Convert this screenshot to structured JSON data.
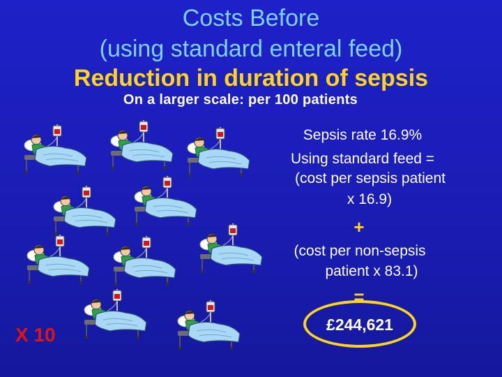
{
  "title": {
    "line1": "Costs Before",
    "line2": "(using standard enteral feed)",
    "line3": "Reduction in duration of sepsis"
  },
  "subtitle": "On a larger scale: per 100 patients",
  "calc": {
    "line1": "Sepsis rate 16.9%",
    "line2": "Using standard feed =",
    "line3": "(cost per sepsis patient",
    "line4": "x 16.9)",
    "plus": "+",
    "line5": "(cost per non-sepsis",
    "line6": "patient x 83.1)",
    "equals": "=",
    "result": "£244,621"
  },
  "multiplier": "X 10",
  "illustration": {
    "icon": "patient-in-bed-icon",
    "count": 10
  },
  "colors": {
    "background": "#1e21c8",
    "title_blue": "#7fd1ff",
    "title_yellow": "#ffd51a",
    "highlight": "#ffd51a",
    "multiplier_red": "#e01414"
  }
}
